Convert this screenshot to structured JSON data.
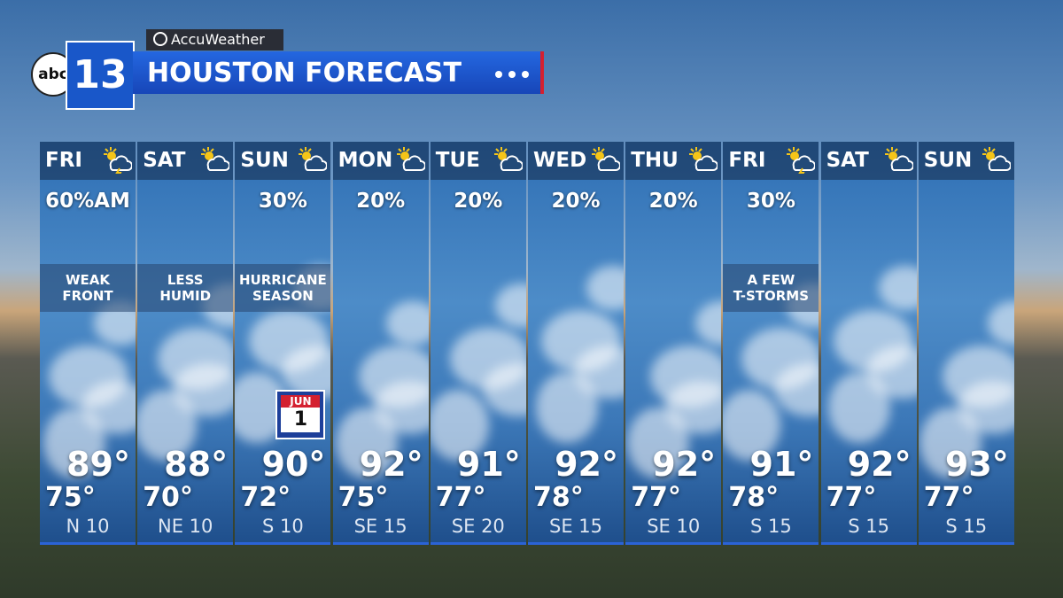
{
  "header": {
    "network": "abc",
    "channel": "13",
    "provider": "AccuWeather",
    "title": "HOUSTON FORECAST"
  },
  "days": [
    {
      "day": "FRI",
      "precip": "60%AM",
      "note": [
        "WEAK",
        "FRONT"
      ],
      "high": "89°",
      "low": "75°",
      "wind": "N 10"
    },
    {
      "day": "SAT",
      "precip": null,
      "note": [
        "LESS",
        "HUMID"
      ],
      "high": "88°",
      "low": "70°",
      "wind": "NE 10"
    },
    {
      "day": "SUN",
      "precip": "30%",
      "note": [
        "HURRICANE",
        "SEASON"
      ],
      "high": "90°",
      "low": "72°",
      "wind": "S 10",
      "calendar": {
        "month": "JUN",
        "date": "1"
      }
    },
    {
      "day": "MON",
      "precip": "20%",
      "note": null,
      "high": "92°",
      "low": "75°",
      "wind": "SE 15"
    },
    {
      "day": "TUE",
      "precip": "20%",
      "note": null,
      "high": "91°",
      "low": "77°",
      "wind": "SE 20"
    },
    {
      "day": "WED",
      "precip": "20%",
      "note": null,
      "high": "92°",
      "low": "78°",
      "wind": "SE 15"
    },
    {
      "day": "THU",
      "precip": "20%",
      "note": null,
      "high": "92°",
      "low": "77°",
      "wind": "SE 10"
    },
    {
      "day": "FRI",
      "precip": "30%",
      "note": [
        "A FEW",
        "T-STORMS"
      ],
      "high": "91°",
      "low": "78°",
      "wind": "S 15"
    },
    {
      "day": "SAT",
      "precip": null,
      "note": null,
      "high": "92°",
      "low": "77°",
      "wind": "S 15"
    },
    {
      "day": "SUN",
      "precip": null,
      "note": null,
      "high": "93°",
      "low": "77°",
      "wind": "S 15"
    }
  ]
}
